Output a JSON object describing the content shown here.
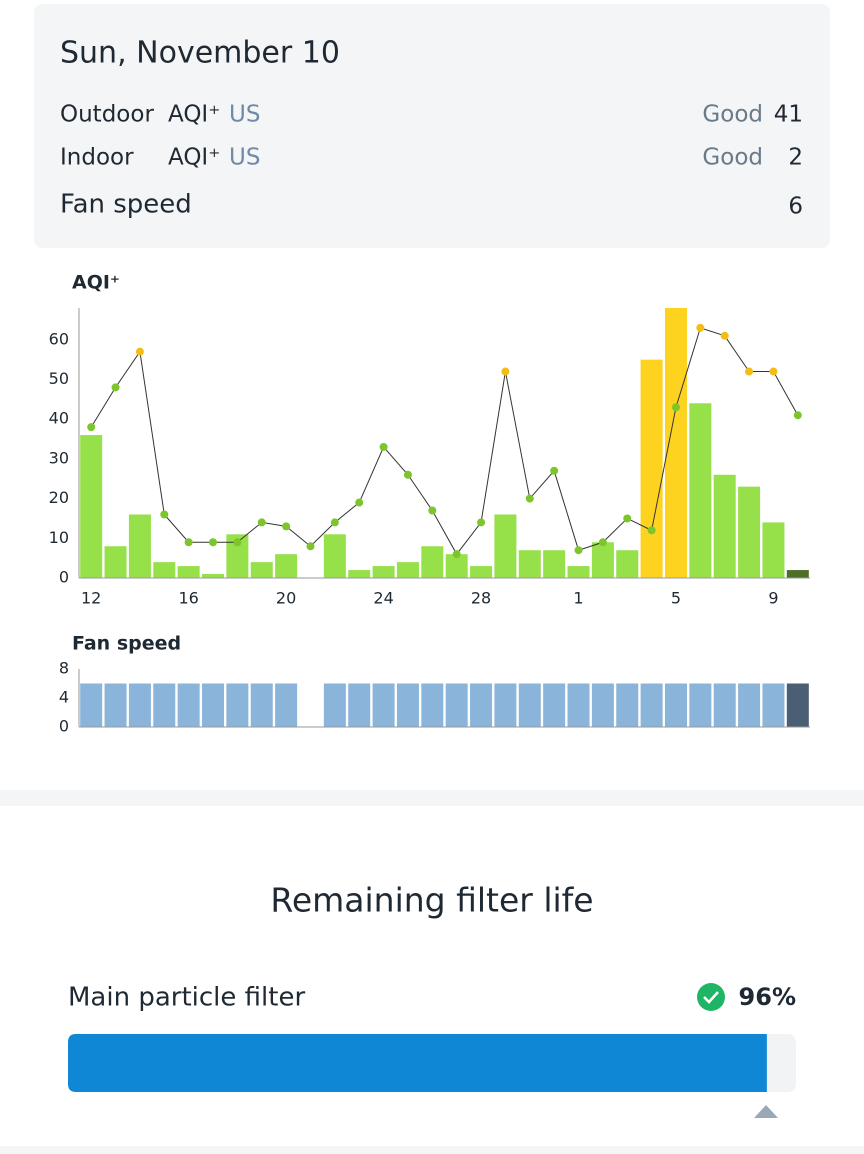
{
  "header": {
    "date": "Sun, November 10",
    "rows": [
      {
        "label": "Outdoor",
        "metric": "AQI⁺",
        "unit": "US",
        "status": "Good",
        "value": 41
      },
      {
        "label": "Indoor",
        "metric": "AQI⁺",
        "unit": "US",
        "status": "Good",
        "value": 2
      }
    ],
    "fan_speed": {
      "label": "Fan speed",
      "value": 6
    }
  },
  "chart_data": [
    {
      "type": "combo",
      "title": "AQI⁺",
      "categories": [
        "12",
        null,
        null,
        null,
        "16",
        null,
        null,
        null,
        "20",
        null,
        null,
        null,
        "24",
        null,
        null,
        null,
        "28",
        null,
        null,
        null,
        "1",
        null,
        null,
        null,
        "5",
        null,
        null,
        null,
        "9",
        null
      ],
      "ylim": [
        0,
        68
      ],
      "yticks": [
        0,
        10,
        20,
        30,
        40,
        50,
        60
      ],
      "series": [
        {
          "type": "bar",
          "values": [
            36,
            8,
            16,
            4,
            3,
            1,
            11,
            4,
            6,
            null,
            11,
            2,
            3,
            4,
            8,
            6,
            3,
            16,
            7,
            7,
            3,
            9,
            7,
            55,
            68,
            44,
            26,
            23,
            14,
            2
          ],
          "colors": [
            "#96e04a",
            "#96e04a",
            "#96e04a",
            "#96e04a",
            "#96e04a",
            "#96e04a",
            "#96e04a",
            "#96e04a",
            "#96e04a",
            null,
            "#96e04a",
            "#96e04a",
            "#96e04a",
            "#96e04a",
            "#96e04a",
            "#96e04a",
            "#96e04a",
            "#96e04a",
            "#96e04a",
            "#96e04a",
            "#96e04a",
            "#96e04a",
            "#96e04a",
            "#fdd31f",
            "#fdd31f",
            "#96e04a",
            "#96e04a",
            "#96e04a",
            "#96e04a",
            "#4d6e27"
          ]
        },
        {
          "type": "line",
          "color": "#333333",
          "values": [
            38,
            48,
            57,
            16,
            9,
            9,
            9,
            14,
            13,
            8,
            14,
            19,
            33,
            26,
            17,
            6,
            14,
            52,
            20,
            27,
            7,
            9,
            15,
            12,
            43,
            63,
            61,
            52,
            52,
            41
          ],
          "colors": [
            "#7cc52a",
            "#7cc52a",
            "#f2be14",
            "#7cc52a",
            "#7cc52a",
            "#7cc52a",
            "#7cc52a",
            "#7cc52a",
            "#7cc52a",
            "#7cc52a",
            "#7cc52a",
            "#7cc52a",
            "#7cc52a",
            "#7cc52a",
            "#7cc52a",
            "#7cc52a",
            "#7cc52a",
            "#f2be14",
            "#7cc52a",
            "#7cc52a",
            "#7cc52a",
            "#7cc52a",
            "#7cc52a",
            "#7cc52a",
            "#7cc52a",
            "#f2be14",
            "#f2be14",
            "#f2be14",
            "#f2be14",
            "#7cc52a"
          ]
        }
      ]
    },
    {
      "type": "bar",
      "title": "Fan speed",
      "ylim": [
        0,
        8
      ],
      "yticks": [
        0,
        4,
        8
      ],
      "values": [
        6,
        6,
        6,
        6,
        6,
        6,
        6,
        6,
        6,
        null,
        6,
        6,
        6,
        6,
        6,
        6,
        6,
        6,
        6,
        6,
        6,
        6,
        6,
        6,
        6,
        6,
        6,
        6,
        6,
        6
      ],
      "colors": [
        "#8ab4d9",
        "#8ab4d9",
        "#8ab4d9",
        "#8ab4d9",
        "#8ab4d9",
        "#8ab4d9",
        "#8ab4d9",
        "#8ab4d9",
        "#8ab4d9",
        null,
        "#8ab4d9",
        "#8ab4d9",
        "#8ab4d9",
        "#8ab4d9",
        "#8ab4d9",
        "#8ab4d9",
        "#8ab4d9",
        "#8ab4d9",
        "#8ab4d9",
        "#8ab4d9",
        "#8ab4d9",
        "#8ab4d9",
        "#8ab4d9",
        "#8ab4d9",
        "#8ab4d9",
        "#8ab4d9",
        "#8ab4d9",
        "#8ab4d9",
        "#8ab4d9",
        "#4a5e74"
      ]
    }
  ],
  "filter": {
    "title": "Remaining filter life",
    "items": [
      {
        "name": "Main particle filter",
        "value": 96,
        "value_label": "96%",
        "scale": [
          0,
          100
        ]
      }
    ]
  }
}
